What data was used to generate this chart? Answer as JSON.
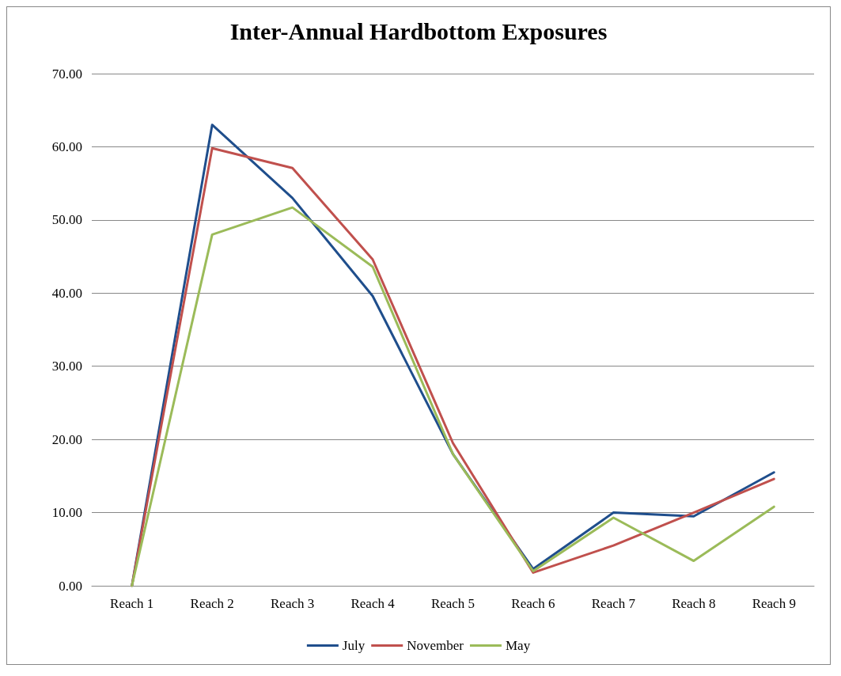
{
  "chart_data": {
    "type": "line",
    "title": "Inter-Annual Hardbottom Exposures",
    "categories": [
      "Reach 1",
      "Reach 2",
      "Reach 3",
      "Reach 4",
      "Reach 5",
      "Reach 6",
      "Reach 7",
      "Reach 8",
      "Reach 9"
    ],
    "series": [
      {
        "name": "July",
        "color": "#1f4e8c",
        "values": [
          0,
          63.0,
          53.0,
          39.6,
          18.0,
          2.3,
          10.0,
          9.5,
          15.5
        ]
      },
      {
        "name": "November",
        "color": "#c0504d",
        "values": [
          0,
          59.8,
          57.1,
          44.6,
          19.5,
          1.8,
          5.5,
          10.0,
          14.6
        ]
      },
      {
        "name": "May",
        "color": "#9bbb59",
        "values": [
          0,
          48.0,
          51.7,
          43.6,
          18.0,
          2.0,
          9.3,
          3.4,
          10.8
        ]
      }
    ],
    "ylim": [
      0,
      70
    ],
    "yticks": [
      {
        "value": 0,
        "label": "0.00"
      },
      {
        "value": 10,
        "label": "10.00"
      },
      {
        "value": 20,
        "label": "20.00"
      },
      {
        "value": 30,
        "label": "30.00"
      },
      {
        "value": 40,
        "label": "40.00"
      },
      {
        "value": 50,
        "label": "50.00"
      },
      {
        "value": 60,
        "label": "60.00"
      },
      {
        "value": 70,
        "label": "70.00"
      }
    ],
    "grid": "y",
    "legend": "bottom",
    "marker": "none",
    "line_style": "solid"
  }
}
